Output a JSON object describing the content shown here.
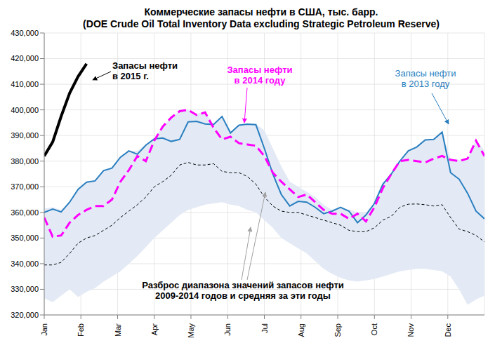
{
  "chart_data": {
    "type": "line",
    "title": "Коммерческие запасы нефти в США, тыс. барр.",
    "subtitle": "(DOE Crude Oil Total Inventory Data excluding Strategic Petroleum Reserve)",
    "annotations": [
      "Запасы нефти\nв 2015 г.",
      "Запасы нефти\nв 2014 году",
      "Запасы нефти\nв 2013 году",
      "Разброс диапазона значений запасов нефти\n2009-2014 годов и средняя за эти годы"
    ],
    "x": [
      0,
      1,
      2,
      3,
      4,
      5,
      6,
      7,
      8,
      9,
      10,
      11,
      12,
      13,
      14,
      15,
      16,
      17,
      18,
      19,
      20,
      21,
      22,
      23,
      24,
      25,
      26,
      27,
      28,
      29,
      30,
      31,
      32,
      33,
      34,
      35,
      36,
      37,
      38,
      39,
      40,
      41,
      42,
      43,
      44,
      45,
      46,
      47,
      48,
      49,
      50,
      51,
      52
    ],
    "xlim": [
      0,
      52
    ],
    "xticks": [
      {
        "value": 0,
        "label": "Jan"
      },
      {
        "value": 4.33,
        "label": "Feb"
      },
      {
        "value": 8.67,
        "label": "Mar"
      },
      {
        "value": 13,
        "label": "Apr"
      },
      {
        "value": 17.33,
        "label": "May"
      },
      {
        "value": 21.67,
        "label": "Jun"
      },
      {
        "value": 26,
        "label": "Jul"
      },
      {
        "value": 30.33,
        "label": "Aug"
      },
      {
        "value": 34.67,
        "label": "Sep"
      },
      {
        "value": 39,
        "label": "Oct"
      },
      {
        "value": 43.33,
        "label": "Nov"
      },
      {
        "value": 47.67,
        "label": "Dec"
      }
    ],
    "ylim": [
      320000,
      430000
    ],
    "yticks": [
      {
        "value": 320000,
        "label": "320,000"
      },
      {
        "value": 330000,
        "label": "330,000"
      },
      {
        "value": 340000,
        "label": "340,000"
      },
      {
        "value": 350000,
        "label": "350,000"
      },
      {
        "value": 360000,
        "label": "360,000"
      },
      {
        "value": 370000,
        "label": "370,000"
      },
      {
        "value": 380000,
        "label": "380,000"
      },
      {
        "value": 390000,
        "label": "390,000"
      },
      {
        "value": 400000,
        "label": "400,000"
      },
      {
        "value": 410000,
        "label": "410,000"
      },
      {
        "value": 420000,
        "label": "420,000"
      },
      {
        "value": 430000,
        "label": "430,000"
      }
    ],
    "grid": true,
    "series": [
      {
        "type": "area",
        "color": "#e3eaf5",
        "low": [
          326500,
          325000,
          327500,
          330000,
          327000,
          329000,
          330500,
          333000,
          335000,
          337000,
          340000,
          343000,
          346500,
          350000,
          353000,
          356000,
          359000,
          361000,
          362000,
          363000,
          363500,
          364000,
          363000,
          362500,
          361000,
          360000,
          357000,
          354000,
          350000,
          348000,
          346000,
          344000,
          341000,
          338000,
          336000,
          334500,
          333500,
          333000,
          333500,
          334000,
          335000,
          336000,
          337000,
          337500,
          338000,
          338000,
          337500,
          337000,
          335000,
          330000,
          324000,
          326000,
          327500
        ],
        "high": [
          361500,
          362000,
          361000,
          364000,
          369000,
          372000,
          372500,
          376500,
          377500,
          381500,
          384000,
          384000,
          386500,
          389000,
          393500,
          397000,
          399500,
          400000,
          398500,
          399000,
          394500,
          397500,
          391500,
          394000,
          394500,
          394500,
          392000,
          385000,
          378000,
          372000,
          370000,
          368000,
          366000,
          363000,
          361000,
          362000,
          361000,
          360000,
          360000,
          363500,
          371000,
          375000,
          380000,
          384000,
          385500,
          388300,
          388500,
          391300,
          381000,
          380500,
          381000,
          388500,
          384000
        ]
      },
      {
        "type": "line",
        "color": "#000000",
        "line_style": "dotted",
        "values": [
          339500,
          339500,
          340500,
          344000,
          348000,
          350000,
          351000,
          353000,
          355000,
          358000,
          360500,
          363000,
          366000,
          370000,
          372000,
          374500,
          378500,
          379500,
          378500,
          378500,
          379000,
          376000,
          375500,
          375500,
          374000,
          371000,
          366000,
          362500,
          360500,
          360000,
          360000,
          359000,
          358000,
          357000,
          356000,
          355000,
          353000,
          352500,
          352500,
          354000,
          357000,
          358500,
          362000,
          363200,
          363300,
          363000,
          362500,
          363000,
          358000,
          353500,
          352500,
          351000,
          348500
        ]
      },
      {
        "type": "line",
        "color": "#2a7fc0",
        "line_style": "solid",
        "values": [
          360000,
          361300,
          360200,
          364000,
          369000,
          371800,
          372300,
          376300,
          377300,
          381500,
          384000,
          382700,
          386200,
          388700,
          389000,
          387700,
          388500,
          395300,
          395500,
          394500,
          394300,
          397400,
          391000,
          394000,
          394400,
          394200,
          385000,
          375000,
          367000,
          362500,
          364300,
          364000,
          362000,
          359500,
          360500,
          362000,
          360500,
          356000,
          359000,
          363500,
          371000,
          375000,
          380000,
          384000,
          385500,
          388300,
          388500,
          391300,
          375500,
          373000,
          367500,
          360500,
          357500
        ]
      },
      {
        "type": "line",
        "color": "#ff00ff",
        "line_style": "dashed",
        "values": [
          358000,
          350500,
          351000,
          356000,
          359000,
          361000,
          362500,
          362500,
          365000,
          372000,
          376500,
          382000,
          380000,
          388000,
          393500,
          397000,
          399500,
          400000,
          398000,
          399000,
          393000,
          388500,
          389500,
          387000,
          386500,
          386000,
          382000,
          375500,
          372000,
          369000,
          366000,
          367000,
          364000,
          361000,
          359500,
          359500,
          357500,
          359500,
          356500,
          362000,
          369500,
          375000,
          380000,
          380500,
          380000,
          379500,
          381000,
          382000,
          380500,
          380000,
          381000,
          388000,
          382000
        ]
      },
      {
        "type": "line",
        "color": "#000000",
        "line_style": "solid",
        "values": [
          382000,
          387500,
          397500,
          406500,
          413000,
          418000,
          null,
          null,
          null,
          null,
          null,
          null,
          null,
          null,
          null,
          null,
          null,
          null,
          null,
          null,
          null,
          null,
          null,
          null,
          null,
          null,
          null,
          null,
          null,
          null,
          null,
          null,
          null,
          null,
          null,
          null,
          null,
          null,
          null,
          null,
          null,
          null,
          null,
          null,
          null,
          null,
          null,
          null,
          null,
          null,
          null,
          null,
          null
        ]
      }
    ]
  }
}
